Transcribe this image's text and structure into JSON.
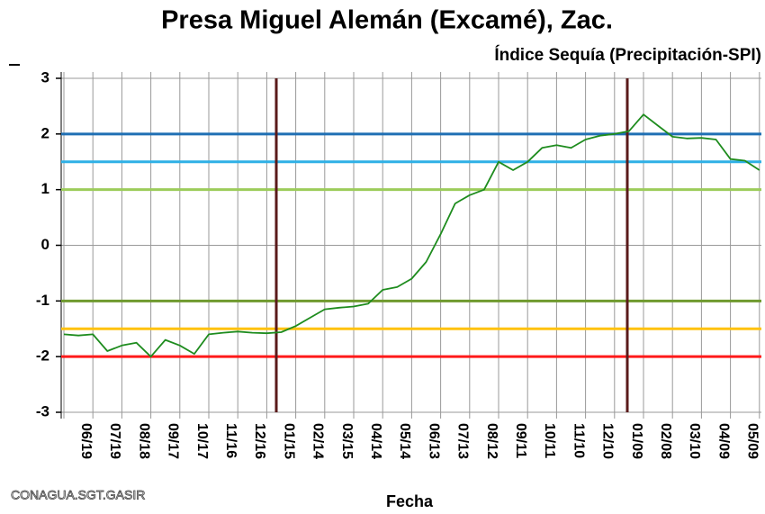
{
  "chart_data": {
    "type": "line",
    "title": "Presa Miguel Alemán (Excamé), Zac.",
    "subtitle": "Índice Sequía (Precipitación-SPI)",
    "x_label": "Fecha",
    "watermark": "CONAGUA.SGT.GASIR",
    "categories": [
      null,
      null,
      "06/19",
      null,
      "07/19",
      null,
      "08/18",
      null,
      "09/17",
      null,
      "10/17",
      null,
      "11/16",
      null,
      "12/16",
      null,
      "01/15",
      null,
      "02/14",
      null,
      "03/15",
      null,
      "04/14",
      null,
      "05/14",
      null,
      "06/13",
      null,
      "07/13",
      null,
      "08/12",
      null,
      "09/11",
      null,
      "10/11",
      null,
      "11/10",
      null,
      "12/10",
      null,
      "01/09",
      null,
      "02/08",
      null,
      "03/10",
      null,
      "04/09",
      null,
      "05/09"
    ],
    "series": [
      {
        "color": "#1e8c1e",
        "values": [
          -1.6,
          -1.62,
          -1.6,
          -1.9,
          -1.8,
          -1.75,
          -2.0,
          -1.7,
          -1.8,
          -1.95,
          -1.6,
          -1.57,
          -1.55,
          -1.57,
          -1.58,
          -1.56,
          -1.45,
          -1.3,
          -1.15,
          -1.12,
          -1.1,
          -1.05,
          -0.8,
          -0.75,
          -0.6,
          -0.3,
          0.2,
          0.75,
          0.9,
          1.0,
          1.5,
          1.35,
          1.5,
          1.75,
          1.8,
          1.75,
          1.9,
          1.97,
          2.0,
          2.05,
          2.35,
          2.15,
          1.95,
          1.92,
          1.93,
          1.9,
          1.55,
          1.52,
          1.35
        ]
      }
    ],
    "reference_lines": [
      {
        "value": 2,
        "color": "#1f6fb4"
      },
      {
        "value": 1.5,
        "color": "#2fb0e6"
      },
      {
        "value": 1,
        "color": "#9ccc5a"
      },
      {
        "value": -1,
        "color": "#6f9a2e"
      },
      {
        "value": -1.5,
        "color": "#ffc20e"
      },
      {
        "value": -2,
        "color": "#ff1a1a"
      }
    ],
    "ylim": [
      -3,
      3
    ],
    "yticks": [
      -3,
      -2,
      -1,
      0,
      1,
      2,
      3
    ],
    "grid": true
  }
}
